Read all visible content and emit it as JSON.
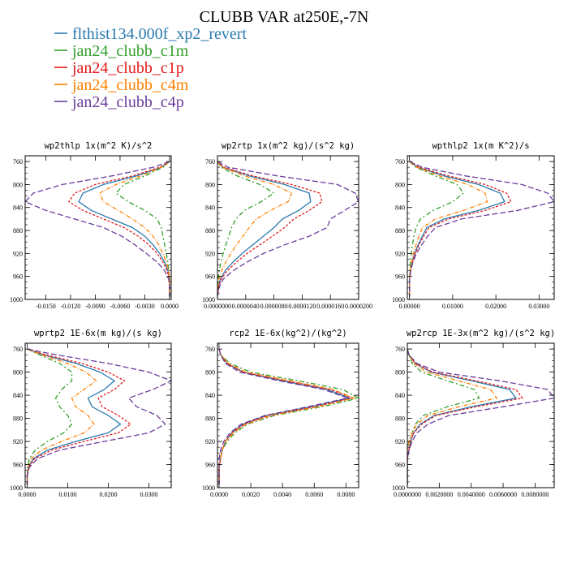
{
  "figure_title": "CLUBB VAR at250E,-7N",
  "legend": [
    {
      "name": "flthist134.000f_xp2_revert",
      "color": "#2a7ab0"
    },
    {
      "name": "jan24_clubb_c1m",
      "color": "#33a02c"
    },
    {
      "name": "jan24_clubb_c1p",
      "color": "#e31a1c"
    },
    {
      "name": "jan24_clubb_c4m",
      "color": "#ff7f00"
    },
    {
      "name": "jan24_clubb_c4p",
      "color": "#6a3d9a"
    }
  ],
  "chart_data": [
    {
      "type": "line",
      "title": "wp2thlp   1x(m^2 K)/s^2",
      "y_levels": [
        760,
        770,
        785,
        800,
        815,
        830,
        845,
        860,
        875,
        890,
        905,
        920,
        935,
        950,
        965,
        980,
        995
      ],
      "ylim": [
        1000,
        750
      ],
      "xlim": [
        -0.0175,
        0.0002
      ],
      "xticks": [
        "-0.0150",
        "-0.0120",
        "-0.0090",
        "-0.0060",
        "-0.0030",
        "0.0000"
      ],
      "xtick_values": [
        -0.015,
        -0.012,
        -0.009,
        -0.006,
        -0.003,
        0.0
      ],
      "yticks": [
        760,
        800,
        840,
        880,
        920,
        960,
        1000
      ],
      "series": [
        {
          "name": "flthist134.000f_xp2_revert",
          "values": [
            0.0,
            -0.001,
            -0.004,
            -0.008,
            -0.0105,
            -0.011,
            -0.0095,
            -0.007,
            -0.0045,
            -0.003,
            -0.002,
            -0.0012,
            -0.0006,
            -0.0002,
            0.0,
            0.0,
            0.0
          ]
        },
        {
          "name": "jan24_clubb_c1m",
          "values": [
            0.0,
            -0.0008,
            -0.003,
            -0.0055,
            -0.0065,
            -0.005,
            -0.003,
            -0.0015,
            -0.001,
            -0.0008,
            -0.0006,
            -0.0004,
            -0.0002,
            -0.0001,
            0.0,
            0.0,
            0.0
          ]
        },
        {
          "name": "jan24_clubb_c1p",
          "values": [
            0.0,
            -0.0012,
            -0.0045,
            -0.009,
            -0.0115,
            -0.0122,
            -0.0105,
            -0.008,
            -0.0055,
            -0.0038,
            -0.0025,
            -0.0015,
            -0.0008,
            -0.0003,
            0.0,
            0.0,
            0.0
          ]
        },
        {
          "name": "jan24_clubb_c4m",
          "values": [
            0.0,
            -0.001,
            -0.0035,
            -0.0065,
            -0.0085,
            -0.008,
            -0.0062,
            -0.0045,
            -0.003,
            -0.002,
            -0.0013,
            -0.0008,
            -0.0004,
            -0.0001,
            0.0,
            0.0,
            0.0
          ]
        },
        {
          "name": "jan24_clubb_c4p",
          "values": [
            0.0,
            -0.002,
            -0.007,
            -0.013,
            -0.0165,
            -0.0175,
            -0.015,
            -0.0115,
            -0.008,
            -0.0058,
            -0.0042,
            -0.0028,
            -0.0015,
            -0.0006,
            -0.0001,
            0.0,
            0.0
          ]
        }
      ]
    },
    {
      "type": "line",
      "title": "wp2rtp   1x(m^2 kg)/(s^2 kg)",
      "y_levels": [
        760,
        770,
        785,
        800,
        815,
        830,
        845,
        860,
        875,
        890,
        905,
        920,
        935,
        950,
        965,
        980,
        995
      ],
      "ylim": [
        1000,
        750
      ],
      "xlim": [
        0.0,
        0.0002
      ],
      "xticks": [
        "0.0000000",
        "0.0000040",
        "0.0000080",
        "0.0000120",
        "0.0000160",
        "0.0000200"
      ],
      "xtick_values": [
        0.0,
        4e-05,
        8e-05,
        0.00012,
        0.00016,
        0.0002
      ],
      "yticks": [
        760,
        800,
        840,
        880,
        920,
        960,
        1000
      ],
      "series": [
        {
          "name": "flthist134.000f_xp2_revert",
          "values": [
            0.0,
            8e-06,
            4.5e-05,
            9.5e-05,
            0.00013,
            0.000132,
            0.000115,
            9.2e-05,
            8e-05,
            6.5e-05,
            5e-05,
            3.5e-05,
            2.2e-05,
            1.1e-05,
            4e-06,
            1e-06,
            0.0
          ]
        },
        {
          "name": "jan24_clubb_c1m",
          "values": [
            0.0,
            5e-06,
            2.8e-05,
            6e-05,
            8e-05,
            6.2e-05,
            3.8e-05,
            2.6e-05,
            2e-05,
            1.6e-05,
            1.2e-05,
            8e-06,
            5e-06,
            2.5e-06,
            1e-06,
            0.0,
            0.0
          ]
        },
        {
          "name": "jan24_clubb_c1p",
          "values": [
            0.0,
            9e-06,
            5e-05,
            0.000105,
            0.000145,
            0.000148,
            0.00013,
            0.000108,
            9.5e-05,
            7.8e-05,
            6e-05,
            4.2e-05,
            2.7e-05,
            1.4e-05,
            5e-06,
            1.5e-06,
            0.0
          ]
        },
        {
          "name": "jan24_clubb_c4m",
          "values": [
            0.0,
            7e-06,
            3.8e-05,
            8e-05,
            0.000105,
            0.0001,
            7.5e-05,
            5.5e-05,
            4.5e-05,
            3.6e-05,
            2.7e-05,
            1.9e-05,
            1.2e-05,
            6e-06,
            2e-06,
            5e-07,
            0.0
          ]
        },
        {
          "name": "jan24_clubb_c4p",
          "values": [
            0.0,
            1.5e-05,
            8.5e-05,
            0.00017,
            0.000195,
            0.0002,
            0.00018,
            0.00016,
            0.000155,
            0.00013,
            9.5e-05,
            6.5e-05,
            4.2e-05,
            2.2e-05,
            8e-06,
            2e-06,
            0.0
          ]
        }
      ]
    },
    {
      "type": "line",
      "title": "wpthlp2   1x(m K^2)/s",
      "y_levels": [
        760,
        770,
        785,
        800,
        815,
        830,
        845,
        860,
        875,
        890,
        905,
        920,
        935,
        950,
        965,
        980,
        995
      ],
      "ylim": [
        1000,
        750
      ],
      "xlim": [
        -0.0005,
        0.0335
      ],
      "xticks": [
        "0.00000",
        "0.01000",
        "0.02000",
        "0.03000"
      ],
      "xtick_values": [
        0.0,
        0.01,
        0.02,
        0.03
      ],
      "yticks": [
        760,
        800,
        840,
        880,
        920,
        960,
        1000
      ],
      "series": [
        {
          "name": "flthist134.000f_xp2_revert",
          "values": [
            0.0,
            0.002,
            0.008,
            0.016,
            0.021,
            0.022,
            0.016,
            0.008,
            0.004,
            0.003,
            0.002,
            0.0012,
            0.0006,
            0.0002,
            0.0,
            0.0,
            0.0
          ]
        },
        {
          "name": "jan24_clubb_c1m",
          "values": [
            0.0,
            0.0015,
            0.006,
            0.011,
            0.0125,
            0.01,
            0.0055,
            0.0025,
            0.0015,
            0.001,
            0.0007,
            0.0004,
            0.0002,
            0.0001,
            0.0,
            0.0,
            0.0
          ]
        },
        {
          "name": "jan24_clubb_c1p",
          "values": [
            0.0,
            0.0022,
            0.009,
            0.0175,
            0.0225,
            0.0235,
            0.0175,
            0.009,
            0.0045,
            0.0033,
            0.0022,
            0.0013,
            0.0007,
            0.0002,
            0.0,
            0.0,
            0.0
          ]
        },
        {
          "name": "jan24_clubb_c4m",
          "values": [
            0.0,
            0.0018,
            0.007,
            0.0135,
            0.0175,
            0.018,
            0.0125,
            0.006,
            0.003,
            0.0022,
            0.0015,
            0.0009,
            0.0005,
            0.0002,
            0.0,
            0.0,
            0.0
          ]
        },
        {
          "name": "jan24_clubb_c4p",
          "values": [
            0.0,
            0.003,
            0.013,
            0.026,
            0.032,
            0.0335,
            0.025,
            0.012,
            0.006,
            0.0042,
            0.0028,
            0.0016,
            0.0008,
            0.0003,
            0.0,
            0.0,
            0.0
          ]
        }
      ]
    },
    {
      "type": "line",
      "title": "wprtp2   1E-6x(m kg)/(s kg)",
      "y_levels": [
        760,
        770,
        785,
        800,
        815,
        830,
        845,
        860,
        875,
        890,
        905,
        920,
        935,
        950,
        965,
        980,
        995
      ],
      "ylim": [
        1000,
        750
      ],
      "xlim": [
        -0.0005,
        0.0355
      ],
      "xticks": [
        "0.0000",
        "0.0100",
        "0.0200",
        "0.0300"
      ],
      "xtick_values": [
        0.0,
        0.01,
        0.02,
        0.03
      ],
      "yticks": [
        760,
        800,
        840,
        880,
        920,
        960,
        1000
      ],
      "series": [
        {
          "name": "flthist134.000f_xp2_revert",
          "values": [
            0.0,
            0.004,
            0.012,
            0.018,
            0.0215,
            0.019,
            0.015,
            0.016,
            0.02,
            0.023,
            0.02,
            0.012,
            0.005,
            0.0015,
            0.0003,
            0.0,
            0.0
          ]
        },
        {
          "name": "jan24_clubb_c1m",
          "values": [
            0.0,
            0.003,
            0.008,
            0.011,
            0.011,
            0.0085,
            0.007,
            0.008,
            0.01,
            0.011,
            0.009,
            0.005,
            0.002,
            0.0005,
            0.0001,
            0.0,
            0.0
          ]
        },
        {
          "name": "jan24_clubb_c1p",
          "values": [
            0.0,
            0.0045,
            0.0135,
            0.02,
            0.024,
            0.0215,
            0.0175,
            0.0185,
            0.0225,
            0.0255,
            0.0225,
            0.014,
            0.006,
            0.0018,
            0.0004,
            0.0,
            0.0
          ]
        },
        {
          "name": "jan24_clubb_c4m",
          "values": [
            0.0,
            0.0035,
            0.01,
            0.0145,
            0.017,
            0.014,
            0.011,
            0.012,
            0.015,
            0.0165,
            0.014,
            0.0085,
            0.0035,
            0.001,
            0.0002,
            0.0,
            0.0
          ]
        },
        {
          "name": "jan24_clubb_c4p",
          "values": [
            0.0,
            0.007,
            0.02,
            0.03,
            0.0355,
            0.031,
            0.025,
            0.027,
            0.032,
            0.034,
            0.03,
            0.019,
            0.008,
            0.0025,
            0.0005,
            0.0,
            0.0
          ]
        }
      ]
    },
    {
      "type": "line",
      "title": "rcp2   1E-6x(kg^2)/(kg^2)",
      "y_levels": [
        760,
        770,
        785,
        800,
        815,
        830,
        845,
        860,
        875,
        890,
        905,
        920,
        935,
        950,
        965,
        980,
        995
      ],
      "ylim": [
        1000,
        750
      ],
      "xlim": [
        -0.0001,
        0.0088
      ],
      "xticks": [
        "0.0000",
        "0.0020",
        "0.0040",
        "0.0060",
        "0.0080"
      ],
      "xtick_values": [
        0.0,
        0.002,
        0.004,
        0.006,
        0.008
      ],
      "yticks": [
        760,
        800,
        840,
        880,
        920,
        960,
        1000
      ],
      "series": [
        {
          "name": "flthist134.000f_xp2_revert",
          "values": [
            0.0,
            0.0001,
            0.0005,
            0.0015,
            0.004,
            0.0068,
            0.0082,
            0.0058,
            0.003,
            0.0015,
            0.0008,
            0.0004,
            0.0002,
            0.0001,
            0.0,
            0.0,
            0.0
          ]
        },
        {
          "name": "jan24_clubb_c1m",
          "values": [
            0.0,
            0.0001,
            0.0007,
            0.002,
            0.005,
            0.0078,
            0.0088,
            0.0065,
            0.0035,
            0.0018,
            0.001,
            0.0005,
            0.0002,
            0.0001,
            0.0,
            0.0,
            0.0
          ]
        },
        {
          "name": "jan24_clubb_c1p",
          "values": [
            0.0,
            0.0001,
            0.0005,
            0.0015,
            0.0042,
            0.007,
            0.0084,
            0.006,
            0.0031,
            0.0016,
            0.0008,
            0.0004,
            0.0002,
            0.0001,
            0.0,
            0.0,
            0.0
          ]
        },
        {
          "name": "jan24_clubb_c4m",
          "values": [
            0.0,
            0.0001,
            0.0006,
            0.0017,
            0.0045,
            0.0072,
            0.0085,
            0.0062,
            0.0033,
            0.0017,
            0.0009,
            0.0004,
            0.0002,
            0.0001,
            0.0,
            0.0,
            0.0
          ]
        },
        {
          "name": "jan24_clubb_c4p",
          "values": [
            0.0,
            0.0001,
            0.0004,
            0.0013,
            0.0038,
            0.0066,
            0.0081,
            0.0056,
            0.0029,
            0.0014,
            0.0007,
            0.0003,
            0.0001,
            0.0,
            0.0,
            0.0,
            0.0
          ]
        }
      ]
    },
    {
      "type": "line",
      "title": "wp2rcp   1E-3x(m^2 kg)/(s^2 kg)",
      "y_levels": [
        760,
        770,
        785,
        800,
        815,
        830,
        845,
        860,
        875,
        890,
        905,
        920,
        935,
        950,
        965,
        980,
        995
      ],
      "ylim": [
        1000,
        750
      ],
      "xlim": [
        0.0,
        0.0092
      ],
      "xticks": [
        "0.0000000",
        "0.0020000",
        "0.0040000",
        "0.0060000",
        "0.0080000"
      ],
      "xtick_values": [
        0.0,
        0.002,
        0.004,
        0.006,
        0.008
      ],
      "yticks": [
        760,
        800,
        840,
        880,
        920,
        960,
        1000
      ],
      "series": [
        {
          "name": "flthist134.000f_xp2_revert",
          "values": [
            0.0,
            0.0001,
            0.0005,
            0.0015,
            0.004,
            0.0064,
            0.0068,
            0.004,
            0.0017,
            0.0008,
            0.0004,
            0.0002,
            0.0001,
            0.0,
            0.0,
            0.0,
            0.0
          ]
        },
        {
          "name": "jan24_clubb_c1m",
          "values": [
            0.0,
            0.0001,
            0.0003,
            0.0009,
            0.0025,
            0.0042,
            0.0045,
            0.0025,
            0.001,
            0.0005,
            0.0003,
            0.0001,
            0.0,
            0.0,
            0.0,
            0.0,
            0.0
          ]
        },
        {
          "name": "jan24_clubb_c1p",
          "values": [
            0.0,
            0.0001,
            0.0005,
            0.0016,
            0.0043,
            0.0068,
            0.0072,
            0.0043,
            0.0018,
            0.0009,
            0.0004,
            0.0002,
            0.0001,
            0.0,
            0.0,
            0.0,
            0.0
          ]
        },
        {
          "name": "jan24_clubb_c4m",
          "values": [
            0.0,
            0.0001,
            0.0004,
            0.0012,
            0.0032,
            0.0052,
            0.0056,
            0.0032,
            0.0013,
            0.0006,
            0.0003,
            0.0001,
            0.0,
            0.0,
            0.0,
            0.0,
            0.0
          ]
        },
        {
          "name": "jan24_clubb_c4p",
          "values": [
            0.0,
            0.0001,
            0.0006,
            0.002,
            0.0058,
            0.0088,
            0.0092,
            0.006,
            0.0026,
            0.0013,
            0.0006,
            0.0003,
            0.0001,
            0.0,
            0.0,
            0.0,
            0.0
          ]
        }
      ]
    }
  ]
}
